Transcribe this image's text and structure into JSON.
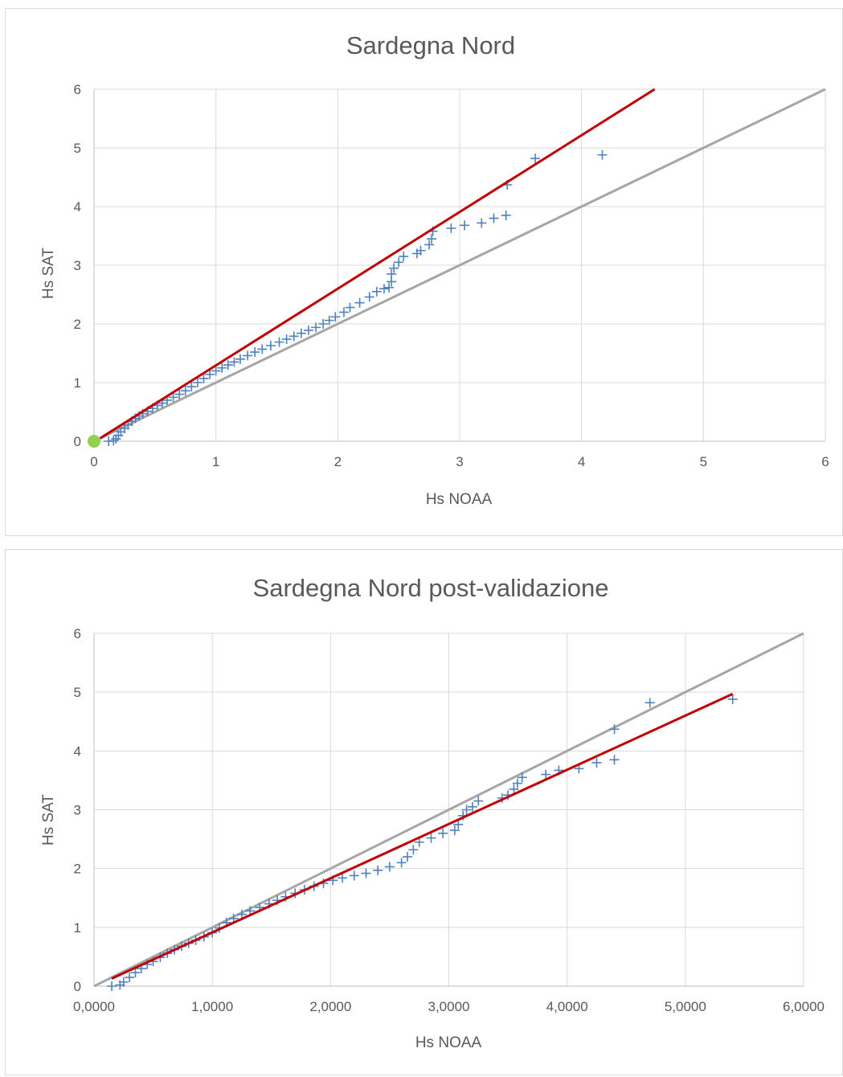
{
  "colors": {
    "points": "#4f81bd",
    "fit_line": "#c00000",
    "bisector": "#a6a6a6",
    "origin_marker": "#92d050",
    "grid": "#d9d9d9",
    "text": "#595959"
  },
  "chart_data": [
    {
      "type": "scatter",
      "title": "Sardegna Nord",
      "xlabel": "Hs NOAA",
      "ylabel": "Hs SAT",
      "xlim": [
        0,
        6
      ],
      "ylim": [
        0,
        6
      ],
      "x_ticks": [
        "0",
        "1",
        "2",
        "3",
        "4",
        "5",
        "6"
      ],
      "y_ticks": [
        "0",
        "1",
        "2",
        "3",
        "4",
        "5",
        "6"
      ],
      "grid": true,
      "legend": "none",
      "marker": "cross",
      "origin_marker": [
        0,
        0
      ],
      "points": [
        [
          0.12,
          0.0
        ],
        [
          0.16,
          0.01
        ],
        [
          0.18,
          0.04
        ],
        [
          0.2,
          0.1
        ],
        [
          0.22,
          0.16
        ],
        [
          0.25,
          0.22
        ],
        [
          0.28,
          0.28
        ],
        [
          0.31,
          0.34
        ],
        [
          0.34,
          0.39
        ],
        [
          0.37,
          0.43
        ],
        [
          0.4,
          0.47
        ],
        [
          0.44,
          0.51
        ],
        [
          0.48,
          0.56
        ],
        [
          0.52,
          0.61
        ],
        [
          0.56,
          0.65
        ],
        [
          0.6,
          0.7
        ],
        [
          0.65,
          0.75
        ],
        [
          0.7,
          0.8
        ],
        [
          0.75,
          0.86
        ],
        [
          0.8,
          0.93
        ],
        [
          0.85,
          1.0
        ],
        [
          0.9,
          1.07
        ],
        [
          0.95,
          1.14
        ],
        [
          1.0,
          1.2
        ],
        [
          1.05,
          1.25
        ],
        [
          1.1,
          1.3
        ],
        [
          1.15,
          1.35
        ],
        [
          1.2,
          1.4
        ],
        [
          1.26,
          1.46
        ],
        [
          1.32,
          1.52
        ],
        [
          1.38,
          1.57
        ],
        [
          1.45,
          1.63
        ],
        [
          1.52,
          1.69
        ],
        [
          1.58,
          1.74
        ],
        [
          1.64,
          1.79
        ],
        [
          1.7,
          1.84
        ],
        [
          1.76,
          1.89
        ],
        [
          1.82,
          1.94
        ],
        [
          1.88,
          2.0
        ],
        [
          1.93,
          2.06
        ],
        [
          1.98,
          2.12
        ],
        [
          2.05,
          2.2
        ],
        [
          2.1,
          2.28
        ],
        [
          2.18,
          2.36
        ],
        [
          2.26,
          2.46
        ],
        [
          2.32,
          2.55
        ],
        [
          2.38,
          2.6
        ],
        [
          2.42,
          2.62
        ],
        [
          2.44,
          2.72
        ],
        [
          2.44,
          2.85
        ],
        [
          2.46,
          2.95
        ],
        [
          2.5,
          3.05
        ],
        [
          2.54,
          3.15
        ],
        [
          2.65,
          3.2
        ],
        [
          2.68,
          3.25
        ],
        [
          2.75,
          3.35
        ],
        [
          2.77,
          3.45
        ],
        [
          2.78,
          3.58
        ],
        [
          2.93,
          3.63
        ],
        [
          3.04,
          3.68
        ],
        [
          3.18,
          3.72
        ],
        [
          3.28,
          3.8
        ],
        [
          3.38,
          3.85
        ],
        [
          3.39,
          4.37
        ],
        [
          3.62,
          4.82
        ],
        [
          4.17,
          4.88
        ]
      ],
      "fit_line": [
        [
          0.05,
          0.05
        ],
        [
          4.6,
          6.0
        ]
      ],
      "bisector": [
        [
          0,
          0
        ],
        [
          6,
          6
        ]
      ]
    },
    {
      "type": "scatter",
      "title": "Sardegna Nord post-validazione",
      "xlabel": "Hs NOAA",
      "ylabel": "Hs SAT",
      "xlim": [
        0,
        6
      ],
      "ylim": [
        0,
        6
      ],
      "x_ticks": [
        "0,0000",
        "1,0000",
        "2,0000",
        "3,0000",
        "4,0000",
        "5,0000",
        "6,0000"
      ],
      "y_ticks": [
        "0",
        "1",
        "2",
        "3",
        "4",
        "5",
        "6"
      ],
      "grid": true,
      "legend": "none",
      "marker": "cross",
      "points": [
        [
          0.15,
          0.0
        ],
        [
          0.22,
          0.02
        ],
        [
          0.25,
          0.07
        ],
        [
          0.3,
          0.15
        ],
        [
          0.35,
          0.23
        ],
        [
          0.4,
          0.3
        ],
        [
          0.45,
          0.37
        ],
        [
          0.5,
          0.42
        ],
        [
          0.56,
          0.49
        ],
        [
          0.62,
          0.56
        ],
        [
          0.68,
          0.62
        ],
        [
          0.74,
          0.68
        ],
        [
          0.8,
          0.73
        ],
        [
          0.86,
          0.78
        ],
        [
          0.93,
          0.84
        ],
        [
          1.0,
          0.91
        ],
        [
          1.06,
          0.99
        ],
        [
          1.12,
          1.08
        ],
        [
          1.18,
          1.15
        ],
        [
          1.25,
          1.22
        ],
        [
          1.32,
          1.28
        ],
        [
          1.4,
          1.34
        ],
        [
          1.48,
          1.4
        ],
        [
          1.55,
          1.46
        ],
        [
          1.62,
          1.52
        ],
        [
          1.7,
          1.58
        ],
        [
          1.78,
          1.64
        ],
        [
          1.86,
          1.7
        ],
        [
          1.94,
          1.75
        ],
        [
          2.02,
          1.8
        ],
        [
          2.1,
          1.84
        ],
        [
          2.2,
          1.88
        ],
        [
          2.3,
          1.92
        ],
        [
          2.4,
          1.97
        ],
        [
          2.5,
          2.03
        ],
        [
          2.6,
          2.1
        ],
        [
          2.65,
          2.2
        ],
        [
          2.7,
          2.32
        ],
        [
          2.75,
          2.45
        ],
        [
          2.85,
          2.52
        ],
        [
          2.95,
          2.6
        ],
        [
          3.05,
          2.65
        ],
        [
          3.08,
          2.75
        ],
        [
          3.12,
          2.9
        ],
        [
          3.15,
          3.0
        ],
        [
          3.2,
          3.05
        ],
        [
          3.25,
          3.15
        ],
        [
          3.45,
          3.2
        ],
        [
          3.5,
          3.25
        ],
        [
          3.55,
          3.35
        ],
        [
          3.58,
          3.45
        ],
        [
          3.62,
          3.55
        ],
        [
          3.82,
          3.6
        ],
        [
          3.93,
          3.67
        ],
        [
          4.1,
          3.7
        ],
        [
          4.25,
          3.8
        ],
        [
          4.4,
          3.85
        ],
        [
          4.4,
          4.37
        ],
        [
          4.7,
          4.82
        ],
        [
          5.4,
          4.88
        ]
      ],
      "fit_line": [
        [
          0.15,
          0.13
        ],
        [
          5.4,
          4.97
        ]
      ],
      "bisector": [
        [
          0,
          0
        ],
        [
          6,
          6
        ]
      ]
    }
  ]
}
